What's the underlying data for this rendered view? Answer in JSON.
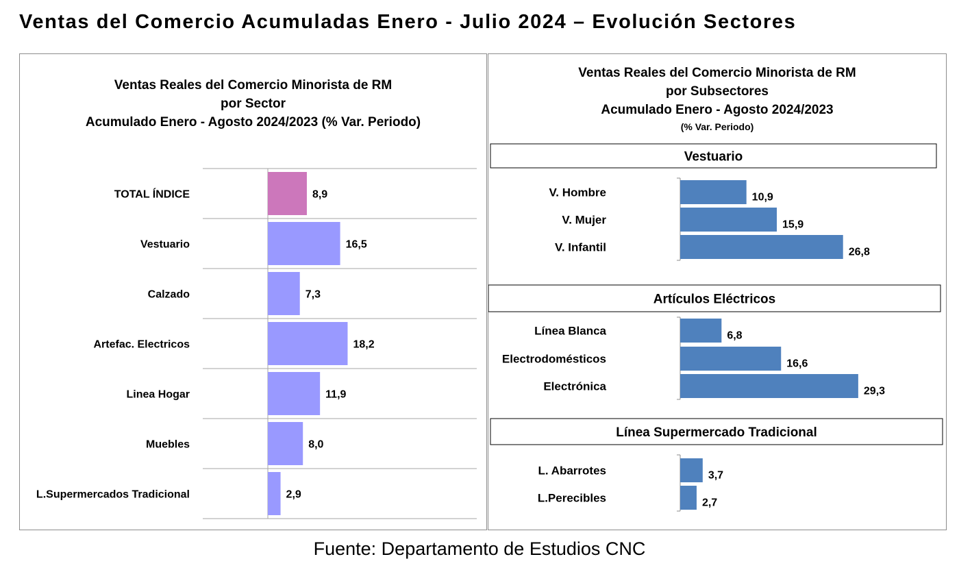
{
  "page": {
    "title": "Ventas del Comercio Acumuladas Enero - Julio 2024 – Evolución Sectores",
    "footer": "Fuente: Departamento de Estudios CNC"
  },
  "chart_data": [
    {
      "type": "bar",
      "orientation": "horizontal",
      "title_lines": [
        "Ventas Reales del Comercio Minorista de RM",
        "por Sector",
        "Acumulado Enero - Agosto  2024/2023 (% Var. Periodo)"
      ],
      "categories": [
        "TOTAL ÍNDICE",
        "Vestuario",
        "Calzado",
        "Artefac. Electricos",
        "Linea Hogar",
        "Muebles",
        "L.Supermercados Tradicional"
      ],
      "values": [
        8.9,
        16.5,
        7.3,
        18.2,
        11.9,
        8.0,
        2.9
      ],
      "labels": [
        "8,9",
        "16,5",
        "7,3",
        "18,2",
        "11,9",
        "8,0",
        "2,9"
      ],
      "colors": [
        "#cc77bb",
        "#9999ff",
        "#9999ff",
        "#9999ff",
        "#9999ff",
        "#9999ff",
        "#9999ff"
      ],
      "xlim": [
        0,
        40
      ],
      "grid": "horizontal"
    },
    {
      "type": "bar",
      "orientation": "horizontal",
      "title_lines": [
        "Ventas Reales del Comercio Minorista de RM",
        "por Subsectores",
        "Acumulado Enero - Agosto  2024/2023"
      ],
      "subtitle": "(% Var. Periodo)",
      "color": "#4f81bd",
      "xlim": [
        0,
        40
      ],
      "groups": [
        {
          "name": "Vestuario",
          "categories": [
            "V. Hombre",
            "V. Mujer",
            "V. Infantil"
          ],
          "values": [
            10.9,
            15.9,
            26.8
          ],
          "labels": [
            "10,9",
            "15,9",
            "26,8"
          ]
        },
        {
          "name": "Artículos Eléctricos",
          "categories": [
            "Línea Blanca",
            "Electrodomésticos",
            "Electrónica"
          ],
          "values": [
            6.8,
            16.6,
            29.3
          ],
          "labels": [
            "6,8",
            "16,6",
            "29,3"
          ]
        },
        {
          "name": "Línea  Supermercado Tradicional",
          "categories": [
            "L. Abarrotes",
            "L.Perecibles"
          ],
          "values": [
            3.7,
            2.7
          ],
          "labels": [
            "3,7",
            "2,7"
          ]
        }
      ]
    }
  ]
}
